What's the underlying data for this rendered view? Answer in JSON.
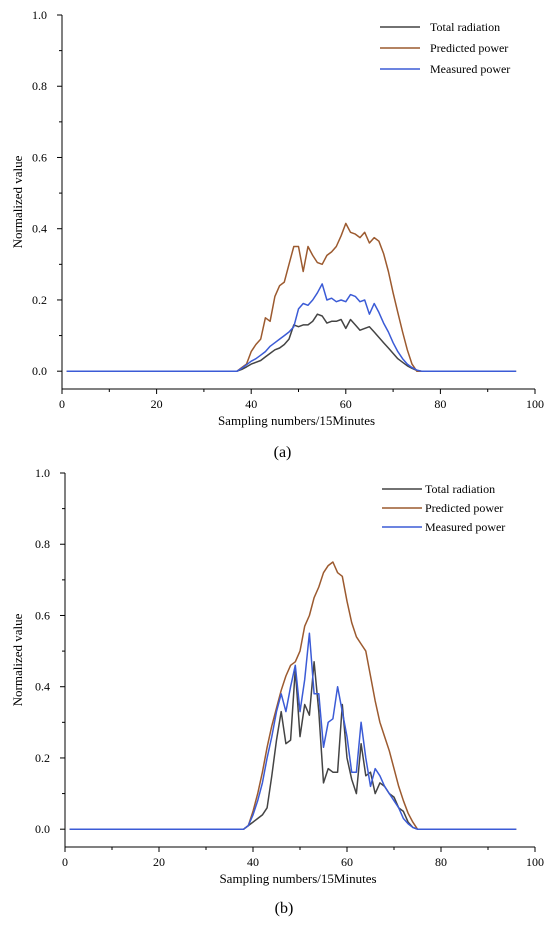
{
  "chart_data": [
    {
      "type": "line",
      "caption": "(a)",
      "xlabel": "Sampling numbers/15Minutes",
      "ylabel": "Normalized value",
      "xlim": [
        0,
        100
      ],
      "ylim": [
        -0.05,
        1.0
      ],
      "xticks": [
        "0",
        "20",
        "40",
        "60",
        "80",
        "100"
      ],
      "yticks": [
        "0.0",
        "0.2",
        "0.4",
        "0.6",
        "0.8",
        "1.0"
      ],
      "legend_position": "top-right",
      "series": [
        {
          "name": "Total radiation",
          "color": "#444444",
          "x": [
            1,
            37,
            38,
            39,
            40,
            41,
            42,
            43,
            44,
            45,
            46,
            47,
            48,
            49,
            50,
            51,
            52,
            53,
            54,
            55,
            56,
            57,
            58,
            59,
            60,
            61,
            62,
            63,
            64,
            65,
            66,
            67,
            68,
            69,
            70,
            71,
            72,
            73,
            74,
            75,
            76,
            96
          ],
          "y": [
            0,
            0,
            0.005,
            0.012,
            0.02,
            0.025,
            0.03,
            0.04,
            0.05,
            0.06,
            0.065,
            0.075,
            0.09,
            0.13,
            0.125,
            0.13,
            0.13,
            0.14,
            0.16,
            0.155,
            0.135,
            0.14,
            0.14,
            0.145,
            0.12,
            0.145,
            0.13,
            0.115,
            0.12,
            0.125,
            0.11,
            0.095,
            0.08,
            0.065,
            0.05,
            0.035,
            0.025,
            0.015,
            0.008,
            0.002,
            0,
            0
          ]
        },
        {
          "name": "Predicted power",
          "color": "#9c5a2f",
          "x": [
            1,
            37,
            38,
            39,
            40,
            41,
            42,
            43,
            44,
            45,
            46,
            47,
            48,
            49,
            50,
            51,
            52,
            53,
            54,
            55,
            56,
            57,
            58,
            59,
            60,
            61,
            62,
            63,
            64,
            65,
            66,
            67,
            68,
            69,
            70,
            71,
            72,
            73,
            74,
            75,
            96
          ],
          "y": [
            0,
            0,
            0.01,
            0.02,
            0.055,
            0.075,
            0.09,
            0.15,
            0.14,
            0.21,
            0.24,
            0.25,
            0.3,
            0.35,
            0.35,
            0.28,
            0.35,
            0.325,
            0.305,
            0.3,
            0.325,
            0.335,
            0.35,
            0.38,
            0.415,
            0.39,
            0.385,
            0.375,
            0.39,
            0.36,
            0.375,
            0.365,
            0.33,
            0.28,
            0.22,
            0.165,
            0.11,
            0.06,
            0.02,
            0,
            0
          ]
        },
        {
          "name": "Measured power",
          "color": "#3b5bd6",
          "x": [
            1,
            37,
            38,
            39,
            40,
            41,
            42,
            43,
            44,
            45,
            46,
            47,
            48,
            49,
            50,
            51,
            52,
            53,
            54,
            55,
            56,
            57,
            58,
            59,
            60,
            61,
            62,
            63,
            64,
            65,
            66,
            67,
            68,
            69,
            70,
            71,
            72,
            73,
            74,
            75,
            76,
            96
          ],
          "y": [
            0,
            0,
            0.008,
            0.018,
            0.028,
            0.035,
            0.045,
            0.055,
            0.07,
            0.08,
            0.09,
            0.1,
            0.11,
            0.125,
            0.175,
            0.19,
            0.185,
            0.2,
            0.22,
            0.245,
            0.2,
            0.205,
            0.195,
            0.2,
            0.195,
            0.215,
            0.21,
            0.195,
            0.2,
            0.16,
            0.19,
            0.165,
            0.135,
            0.11,
            0.08,
            0.055,
            0.035,
            0.02,
            0.01,
            0.003,
            0,
            0
          ]
        }
      ]
    },
    {
      "type": "line",
      "caption": "(b)",
      "xlabel": "Sampling numbers/15Minutes",
      "ylabel": "Normalized value",
      "xlim": [
        0,
        100
      ],
      "ylim": [
        -0.05,
        1.0
      ],
      "xticks": [
        "0",
        "20",
        "40",
        "60",
        "80",
        "100"
      ],
      "yticks": [
        "0.0",
        "0.2",
        "0.4",
        "0.6",
        "0.8",
        "1.0"
      ],
      "legend_position": "top-right",
      "series": [
        {
          "name": "Total radiation",
          "color": "#444444",
          "x": [
            1,
            38,
            39,
            40,
            41,
            42,
            43,
            44,
            45,
            46,
            47,
            48,
            49,
            50,
            51,
            52,
            53,
            54,
            55,
            56,
            57,
            58,
            59,
            60,
            61,
            62,
            63,
            64,
            65,
            66,
            67,
            68,
            69,
            70,
            71,
            72,
            73,
            74,
            75,
            96
          ],
          "y": [
            0,
            0,
            0.01,
            0.02,
            0.03,
            0.04,
            0.06,
            0.15,
            0.25,
            0.33,
            0.24,
            0.25,
            0.45,
            0.26,
            0.35,
            0.32,
            0.47,
            0.33,
            0.13,
            0.17,
            0.16,
            0.16,
            0.35,
            0.2,
            0.14,
            0.1,
            0.24,
            0.15,
            0.16,
            0.1,
            0.13,
            0.12,
            0.1,
            0.09,
            0.06,
            0.05,
            0.02,
            0.005,
            0,
            0
          ]
        },
        {
          "name": "Predicted power",
          "color": "#9c5a2f",
          "x": [
            1,
            38,
            39,
            40,
            41,
            42,
            43,
            44,
            45,
            46,
            47,
            48,
            49,
            50,
            51,
            52,
            53,
            54,
            55,
            56,
            57,
            58,
            59,
            60,
            61,
            62,
            63,
            64,
            65,
            66,
            67,
            68,
            69,
            70,
            71,
            72,
            73,
            74,
            75,
            96
          ],
          "y": [
            0,
            0,
            0.01,
            0.05,
            0.1,
            0.16,
            0.23,
            0.29,
            0.34,
            0.39,
            0.43,
            0.46,
            0.47,
            0.5,
            0.57,
            0.6,
            0.65,
            0.68,
            0.72,
            0.74,
            0.75,
            0.72,
            0.71,
            0.64,
            0.58,
            0.54,
            0.52,
            0.5,
            0.43,
            0.36,
            0.3,
            0.26,
            0.22,
            0.17,
            0.12,
            0.08,
            0.045,
            0.02,
            0,
            0
          ]
        },
        {
          "name": "Measured power",
          "color": "#3b5bd6",
          "x": [
            1,
            38,
            39,
            40,
            41,
            42,
            43,
            44,
            45,
            46,
            47,
            48,
            49,
            50,
            51,
            52,
            53,
            54,
            55,
            56,
            57,
            58,
            59,
            60,
            61,
            62,
            63,
            64,
            65,
            66,
            67,
            68,
            69,
            70,
            71,
            72,
            73,
            74,
            75,
            96
          ],
          "y": [
            0,
            0,
            0.01,
            0.04,
            0.08,
            0.13,
            0.2,
            0.26,
            0.33,
            0.38,
            0.33,
            0.4,
            0.46,
            0.33,
            0.42,
            0.55,
            0.38,
            0.38,
            0.23,
            0.3,
            0.31,
            0.4,
            0.33,
            0.26,
            0.16,
            0.16,
            0.3,
            0.2,
            0.12,
            0.17,
            0.15,
            0.12,
            0.1,
            0.08,
            0.06,
            0.03,
            0.015,
            0.005,
            0,
            0
          ]
        }
      ]
    }
  ]
}
